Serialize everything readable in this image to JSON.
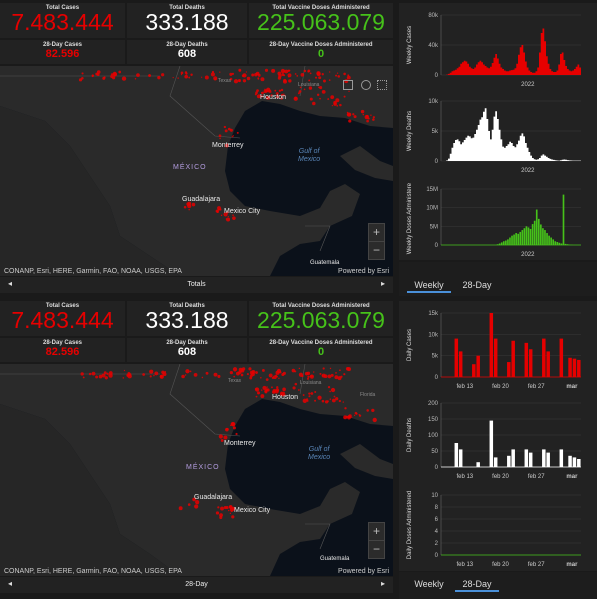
{
  "top": {
    "total_cases_label": "Total Cases",
    "total_cases": "7.483.444",
    "total_deaths_label": "Total Deaths",
    "total_deaths": "333.188",
    "total_vaccine_label": "Total Vaccine Doses Administered",
    "total_vaccine": "225.063.079",
    "d28_cases_label": "28-Day Cases",
    "d28_cases": "82.596",
    "d28_deaths_label": "28-Day Deaths",
    "d28_deaths": "608",
    "d28_vaccine_label": "28-Day Vaccine Doses Administered",
    "d28_vaccine": "0",
    "nav_title": "Totals"
  },
  "bottom": {
    "total_cases_label": "Total Cases",
    "total_cases": "7.483.444",
    "total_deaths_label": "Total Deaths",
    "total_deaths": "333.188",
    "total_vaccine_label": "Total Vaccine Doses Administered",
    "total_vaccine": "225.063.079",
    "d28_cases_label": "28-Day Cases",
    "d28_cases": "82.596",
    "d28_deaths_label": "28-Day Deaths",
    "d28_deaths": "608",
    "d28_vaccine_label": "28-Day Vaccine Doses Administered",
    "d28_vaccine": "0",
    "nav_title": "28-Day"
  },
  "map": {
    "attribution": "CONANP, Esri, HERE, Garmin, FAO, NOAA, USGS, EPA",
    "powered": "Powered by Esri",
    "labels": {
      "houston": "Houston",
      "louisiana": "Louisiana",
      "texas": "Texas",
      "florida": "Florida",
      "monterrey": "Monterrey",
      "gulf1": "Gulf of",
      "gulf2": "Mexico",
      "mexico": "MÉXICO",
      "guadalajara": "Guadalajara",
      "mexico_city": "Mexico City",
      "guatemala": "Guatemala"
    },
    "zoom_in": "+",
    "zoom_out": "−"
  },
  "tabs": {
    "weekly": "Weekly",
    "d28": "28-Day"
  },
  "colors": {
    "cases": "#e60000",
    "deaths": "#ffffff",
    "vaccine": "#46c21a"
  },
  "chart_data": [
    {
      "type": "area",
      "ylabel": "Weekly Cases",
      "yticks": [
        "0",
        "40k",
        "80k"
      ],
      "xticks": [
        "2022"
      ],
      "color": "#e60000",
      "ylim": [
        0,
        80000
      ],
      "values": [
        0,
        0,
        0,
        500,
        1500,
        3000,
        5000,
        6000,
        7000,
        9000,
        11000,
        15000,
        17000,
        19000,
        18000,
        15000,
        11000,
        9000,
        8000,
        10000,
        14000,
        17000,
        19000,
        17000,
        14000,
        12000,
        10000,
        9000,
        11000,
        16000,
        23000,
        28000,
        22000,
        15000,
        10000,
        8000,
        6000,
        5000,
        5000,
        6000,
        6500,
        7000,
        9000,
        15000,
        27000,
        37000,
        40000,
        30000,
        18000,
        10000,
        6000,
        4000,
        3000,
        3000,
        5000,
        10000,
        30000,
        56000,
        62000,
        45000,
        25000,
        15000,
        8000,
        5000,
        4000,
        4000,
        6000,
        14000,
        28000,
        30000,
        20000,
        12000,
        8000,
        6000,
        5000,
        6000,
        8000,
        11000,
        14000,
        10000
      ]
    },
    {
      "type": "area",
      "ylabel": "Weekly Deaths",
      "yticks": [
        "0",
        "5k",
        "10k"
      ],
      "xticks": [
        "2022"
      ],
      "color": "#ffffff",
      "ylim": [
        0,
        10000
      ],
      "values": [
        0,
        0,
        0,
        100,
        400,
        1200,
        2200,
        3000,
        3500,
        3600,
        3300,
        2800,
        3100,
        3500,
        3900,
        4200,
        4100,
        3800,
        3900,
        4500,
        5200,
        6000,
        6900,
        7300,
        8200,
        8800,
        7000,
        5000,
        3600,
        5200,
        7400,
        8300,
        7000,
        5200,
        3600,
        2400,
        2200,
        2500,
        2800,
        3200,
        3000,
        2500,
        2300,
        2800,
        3400,
        4200,
        4600,
        4100,
        3000,
        2200,
        1500,
        900,
        500,
        300,
        200,
        300,
        500,
        900,
        1100,
        900,
        700,
        500,
        350,
        250,
        180,
        120,
        80,
        60,
        120,
        200,
        250,
        200,
        150,
        100,
        80,
        60,
        60,
        60,
        60,
        60
      ]
    },
    {
      "type": "bar",
      "ylabel": "Weekly Doses Administered",
      "yticks": [
        "0",
        "5M",
        "10M",
        "15M"
      ],
      "xticks": [
        "2022"
      ],
      "color": "#46c21a",
      "ylim": [
        0,
        15000000
      ],
      "values": [
        0,
        0,
        0,
        0,
        0,
        0,
        0,
        0,
        0,
        0,
        0,
        0,
        0,
        0,
        0,
        0,
        0,
        0,
        0,
        0,
        0,
        0,
        0,
        0,
        0,
        0,
        0,
        200000,
        400000,
        700000,
        1000000,
        1200000,
        1500000,
        2000000,
        2500000,
        2800000,
        3200000,
        3000000,
        3500000,
        4000000,
        4500000,
        5000000,
        4700000,
        4300000,
        5600000,
        6500000,
        9500000,
        7000000,
        5500000,
        4500000,
        4000000,
        3200000,
        2500000,
        2000000,
        1500000,
        1000000,
        800000,
        600000,
        400000,
        13500000,
        300000,
        200000,
        100000,
        50000,
        0,
        0,
        0,
        0
      ]
    },
    {
      "type": "bar",
      "ylabel": "Daily Cases",
      "yticks": [
        "0",
        "5k",
        "10k",
        "15k"
      ],
      "xticks": [
        "feb 13",
        "feb 20",
        "feb 27",
        "mar"
      ],
      "color": "#e60000",
      "ylim": [
        0,
        15000
      ],
      "values": [
        0,
        0,
        0,
        9000,
        6000,
        0,
        0,
        3000,
        5000,
        0,
        0,
        15000,
        9000,
        0,
        0,
        3500,
        8500,
        0,
        0,
        8000,
        6500,
        0,
        0,
        9000,
        6000,
        0,
        0,
        9000,
        0,
        4500,
        4300,
        4000
      ]
    },
    {
      "type": "bar",
      "ylabel": "Daily Deaths",
      "yticks": [
        "0",
        "50",
        "100",
        "150",
        "200"
      ],
      "xticks": [
        "feb 13",
        "feb 20",
        "feb 27",
        "mar"
      ],
      "color": "#ffffff",
      "ylim": [
        0,
        200
      ],
      "values": [
        0,
        0,
        0,
        75,
        55,
        0,
        0,
        0,
        15,
        0,
        0,
        145,
        30,
        0,
        0,
        35,
        55,
        0,
        0,
        55,
        45,
        0,
        0,
        55,
        45,
        0,
        0,
        55,
        0,
        35,
        30,
        25
      ]
    },
    {
      "type": "bar",
      "ylabel": "Daily Doses Administered",
      "yticks": [
        "0",
        "2",
        "4",
        "6",
        "8",
        "10"
      ],
      "xticks": [
        "feb 13",
        "feb 20",
        "feb 27",
        "mar"
      ],
      "color": "#46c21a",
      "ylim": [
        0,
        10
      ],
      "values": [
        0,
        0,
        0,
        0,
        0,
        0,
        0,
        0,
        0,
        0,
        0,
        0,
        0,
        0,
        0,
        0,
        0,
        0,
        0,
        0,
        0,
        0,
        0,
        0,
        0,
        0,
        0,
        0,
        0,
        0,
        0,
        0
      ]
    }
  ]
}
